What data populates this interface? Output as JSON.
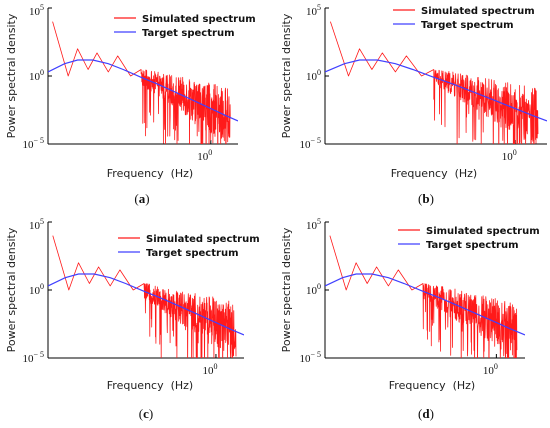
{
  "colors": {
    "simulated": "#ff1a1a",
    "target": "#4040ff",
    "axis": "#000000"
  },
  "chart_data": [
    {
      "type": "line",
      "panel": "a",
      "caption": {
        "open": "(",
        "letter": "a",
        "close": ")"
      },
      "xlabel": "Frequency  (Hz)",
      "ylabel": "Power spectral density",
      "x_scale": "log",
      "y_scale": "log",
      "x_ticks": [
        {
          "base": "10",
          "exp": "0",
          "value": 1
        }
      ],
      "y_ticks": [
        {
          "base": "10",
          "exp": "5",
          "value": 100000
        },
        {
          "base": "10",
          "exp": "0",
          "value": 1
        },
        {
          "base": "10",
          "exp": "− 5",
          "value": 1e-05
        }
      ],
      "xlim": [
        0.06,
        1.6
      ],
      "ylim": [
        1e-05,
        100000
      ],
      "grid": false,
      "legend_placement": "top-right",
      "series": [
        {
          "name": "Simulated spectrum",
          "role": "simulated",
          "x": [
            0.065,
            0.085,
            0.1,
            0.12,
            0.14,
            0.17,
            0.2,
            0.25,
            0.3,
            0.4,
            0.5,
            0.7,
            1.0,
            1.4
          ],
          "y": [
            10000,
            1,
            100,
            3,
            50,
            2,
            30,
            1,
            3,
            0.1,
            0.05,
            0.01,
            0.003,
            0.0003
          ]
        },
        {
          "name": "Target spectrum",
          "role": "target",
          "x": [
            0.06,
            0.08,
            0.1,
            0.13,
            0.17,
            0.22,
            0.3,
            0.4,
            0.55,
            0.75,
            1.0,
            1.3,
            1.6
          ],
          "y": [
            2,
            8,
            15,
            15,
            8,
            3,
            0.8,
            0.25,
            0.06,
            0.015,
            0.004,
            0.0012,
            0.0005
          ]
        }
      ]
    },
    {
      "type": "line",
      "panel": "b",
      "caption": {
        "open": "(",
        "letter": "b",
        "close": ")"
      },
      "xlabel": "Frequency  (Hz)",
      "ylabel": "Power spectral density",
      "x_scale": "log",
      "y_scale": "log",
      "x_ticks": [
        {
          "base": "10",
          "exp": "0",
          "value": 1
        }
      ],
      "y_ticks": [
        {
          "base": "10",
          "exp": "5",
          "value": 100000
        },
        {
          "base": "10",
          "exp": "0",
          "value": 1
        },
        {
          "base": "10",
          "exp": "− 5",
          "value": 1e-05
        }
      ],
      "xlim": [
        0.06,
        1.6
      ],
      "ylim": [
        1e-05,
        100000
      ],
      "grid": false,
      "legend_placement": "top-right",
      "series": [
        {
          "name": "Simulated spectrum",
          "role": "simulated",
          "x": [
            0.065,
            0.085,
            0.1,
            0.12,
            0.14,
            0.17,
            0.2,
            0.25,
            0.3,
            0.4,
            0.5,
            0.7,
            1.0,
            1.4
          ],
          "y": [
            10000,
            1,
            100,
            3,
            50,
            2,
            30,
            1,
            3,
            0.1,
            0.05,
            0.01,
            0.003,
            0.0003
          ]
        },
        {
          "name": "Target spectrum",
          "role": "target",
          "x": [
            0.06,
            0.08,
            0.1,
            0.13,
            0.17,
            0.22,
            0.3,
            0.4,
            0.55,
            0.75,
            1.0,
            1.3,
            1.6
          ],
          "y": [
            2,
            8,
            15,
            15,
            8,
            3,
            0.8,
            0.25,
            0.06,
            0.015,
            0.004,
            0.0012,
            0.0005
          ]
        }
      ]
    },
    {
      "type": "line",
      "panel": "c",
      "caption": {
        "open": "(",
        "letter": "c",
        "close": ")"
      },
      "xlabel": "Frequency  (Hz)",
      "ylabel": "Power spectral density",
      "x_scale": "log",
      "y_scale": "log",
      "x_ticks": [
        {
          "base": "10",
          "exp": "0",
          "value": 1
        }
      ],
      "y_ticks": [
        {
          "base": "10",
          "exp": "5",
          "value": 100000
        },
        {
          "base": "10",
          "exp": "0",
          "value": 1
        },
        {
          "base": "10",
          "exp": "− 5",
          "value": 1e-05
        }
      ],
      "xlim": [
        0.06,
        1.6
      ],
      "ylim": [
        1e-05,
        100000
      ],
      "grid": false,
      "legend_placement": "top-right",
      "series": [
        {
          "name": "Simulated spectrum",
          "role": "simulated",
          "x": [
            0.065,
            0.085,
            0.1,
            0.12,
            0.14,
            0.17,
            0.2,
            0.25,
            0.3,
            0.4,
            0.5,
            0.7,
            1.0,
            1.4
          ],
          "y": [
            10000,
            1,
            100,
            3,
            50,
            2,
            30,
            1,
            3,
            0.1,
            0.05,
            0.01,
            0.003,
            0.0003
          ]
        },
        {
          "name": "Target spectrum",
          "role": "target",
          "x": [
            0.06,
            0.08,
            0.1,
            0.13,
            0.17,
            0.22,
            0.3,
            0.4,
            0.55,
            0.75,
            1.0,
            1.3,
            1.6
          ],
          "y": [
            2,
            8,
            15,
            15,
            8,
            3,
            0.8,
            0.25,
            0.06,
            0.015,
            0.004,
            0.0012,
            0.0005
          ]
        }
      ]
    },
    {
      "type": "line",
      "panel": "d",
      "caption": {
        "open": "(",
        "letter": "d",
        "close": ")"
      },
      "xlabel": "Frequency  (Hz)",
      "ylabel": "Power spectral density",
      "x_scale": "log",
      "y_scale": "log",
      "x_ticks": [
        {
          "base": "10",
          "exp": "0",
          "value": 1
        }
      ],
      "y_ticks": [
        {
          "base": "10",
          "exp": "5",
          "value": 100000
        },
        {
          "base": "10",
          "exp": "0",
          "value": 1
        },
        {
          "base": "10",
          "exp": "− 5",
          "value": 1e-05
        }
      ],
      "xlim": [
        0.06,
        1.6
      ],
      "ylim": [
        1e-05,
        100000
      ],
      "grid": false,
      "legend_placement": "top-right",
      "series": [
        {
          "name": "Simulated spectrum",
          "role": "simulated",
          "x": [
            0.065,
            0.085,
            0.1,
            0.12,
            0.14,
            0.17,
            0.2,
            0.25,
            0.3,
            0.4,
            0.5,
            0.7,
            1.0,
            1.4
          ],
          "y": [
            10000,
            1,
            100,
            3,
            50,
            2,
            30,
            1,
            3,
            0.1,
            0.05,
            0.01,
            0.003,
            0.0003
          ]
        },
        {
          "name": "Target spectrum",
          "role": "target",
          "x": [
            0.06,
            0.08,
            0.1,
            0.13,
            0.17,
            0.22,
            0.3,
            0.4,
            0.55,
            0.75,
            1.0,
            1.3,
            1.6
          ],
          "y": [
            2,
            8,
            15,
            15,
            8,
            3,
            0.8,
            0.25,
            0.06,
            0.015,
            0.004,
            0.0012,
            0.0005
          ]
        }
      ]
    }
  ]
}
